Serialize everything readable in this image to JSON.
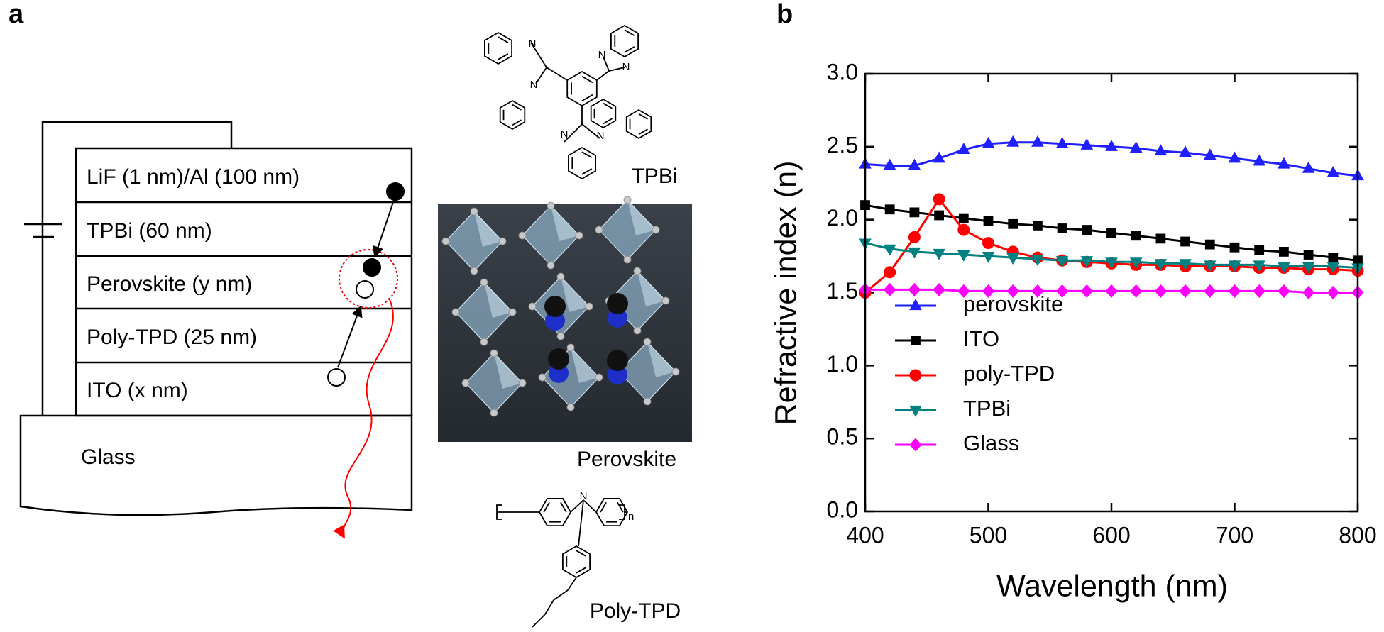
{
  "panel_a": {
    "label": "a",
    "layers": [
      "LiF (1 nm)/Al (100 nm)",
      "TPBi (60 nm)",
      "Perovskite (y nm)",
      "Poly-TPD (25 nm)",
      "ITO (x nm)"
    ],
    "substrate": "Glass",
    "molecules": {
      "tpbi": "TPBi",
      "perovskite": "Perovskite",
      "poly_tpd": "Poly-TPD"
    },
    "atom_label": "N",
    "repeat_subscript": "n"
  },
  "chart_data": {
    "type": "line",
    "panel_label": "b",
    "xlabel": "Wavelength (nm)",
    "ylabel": "Refractive index (n)",
    "x": [
      400,
      420,
      440,
      460,
      480,
      500,
      520,
      540,
      560,
      580,
      600,
      620,
      640,
      660,
      680,
      700,
      720,
      740,
      760,
      780,
      800
    ],
    "series": [
      {
        "name": "perovskite",
        "color": "#1f1fff",
        "marker": "triangle-up",
        "values": [
          2.38,
          2.37,
          2.37,
          2.42,
          2.48,
          2.52,
          2.53,
          2.53,
          2.52,
          2.51,
          2.5,
          2.49,
          2.47,
          2.46,
          2.44,
          2.42,
          2.4,
          2.38,
          2.35,
          2.32,
          2.3
        ]
      },
      {
        "name": "ITO",
        "color": "#000000",
        "marker": "square",
        "values": [
          2.1,
          2.07,
          2.05,
          2.03,
          2.01,
          1.99,
          1.97,
          1.96,
          1.94,
          1.93,
          1.91,
          1.89,
          1.87,
          1.85,
          1.83,
          1.81,
          1.79,
          1.78,
          1.76,
          1.74,
          1.72
        ]
      },
      {
        "name": "poly-TPD",
        "color": "#ff0000",
        "marker": "circle",
        "values": [
          1.5,
          1.64,
          1.88,
          2.14,
          1.93,
          1.84,
          1.78,
          1.74,
          1.72,
          1.71,
          1.7,
          1.69,
          1.69,
          1.68,
          1.68,
          1.68,
          1.67,
          1.67,
          1.66,
          1.66,
          1.65
        ]
      },
      {
        "name": "TPBi",
        "color": "#008080",
        "marker": "triangle-down",
        "values": [
          1.84,
          1.8,
          1.78,
          1.77,
          1.76,
          1.75,
          1.74,
          1.73,
          1.72,
          1.72,
          1.71,
          1.71,
          1.7,
          1.7,
          1.69,
          1.69,
          1.69,
          1.68,
          1.68,
          1.68,
          1.67
        ]
      },
      {
        "name": "Glass",
        "color": "#ff00ff",
        "marker": "diamond",
        "values": [
          1.52,
          1.52,
          1.52,
          1.52,
          1.51,
          1.51,
          1.51,
          1.51,
          1.51,
          1.51,
          1.51,
          1.51,
          1.51,
          1.51,
          1.51,
          1.51,
          1.51,
          1.51,
          1.5,
          1.5,
          1.5
        ]
      }
    ],
    "xlim": [
      400,
      800
    ],
    "ylim": [
      0,
      3
    ],
    "xticks": [
      400,
      500,
      600,
      700,
      800
    ],
    "yticks": [
      {
        "value": 0,
        "label": "0.0"
      },
      0.5,
      {
        "value": 1,
        "label": "1.0"
      },
      1.5,
      {
        "value": 2,
        "label": "2.0"
      },
      2.5,
      {
        "value": 3,
        "label": "3.0"
      }
    ],
    "grid": false,
    "legend": "lower left"
  }
}
